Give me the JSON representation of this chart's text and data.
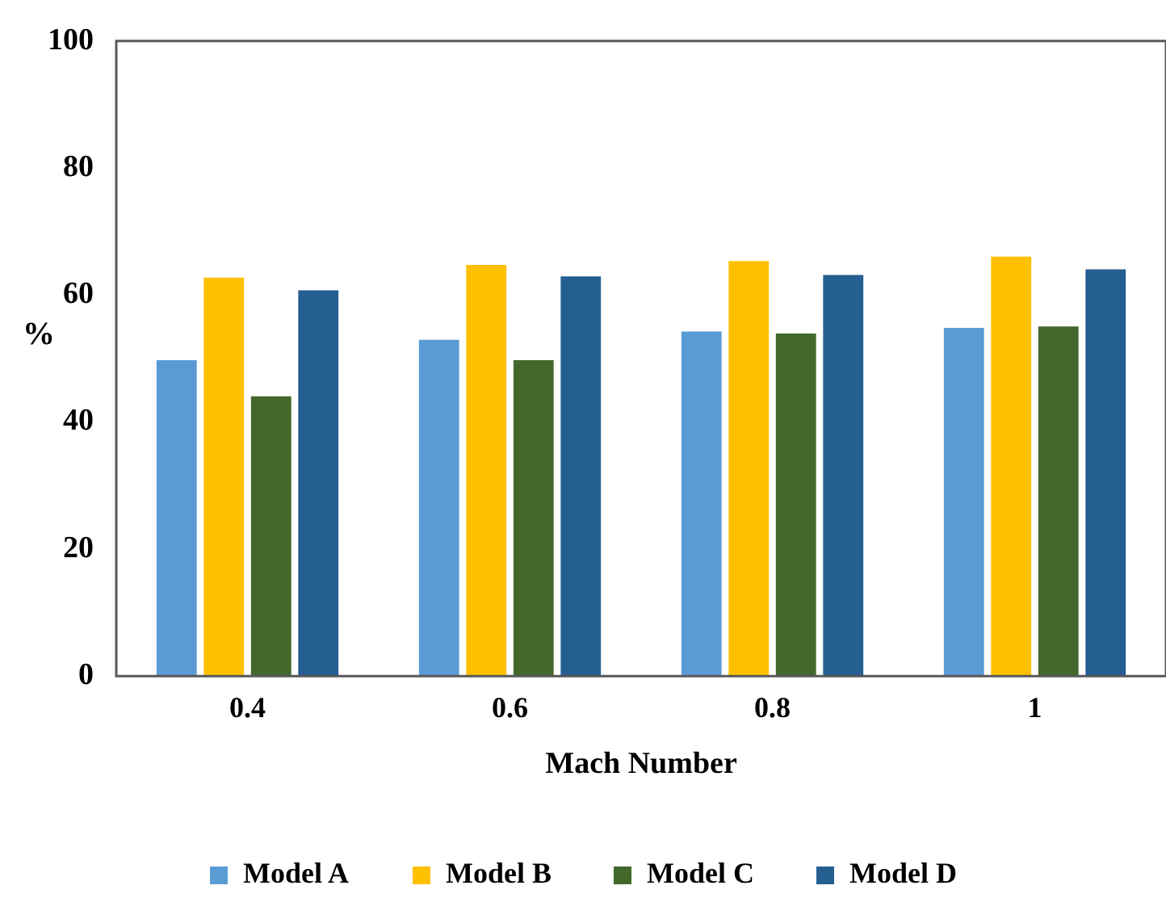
{
  "chart_data": {
    "type": "bar",
    "xlabel": "Mach Number",
    "ylabel": "%",
    "categories": [
      "0.4",
      "0.6",
      "0.8",
      "1"
    ],
    "series": [
      {
        "name": "Model A",
        "color": "#5b9bd5",
        "values": [
          50,
          53.2,
          54.5,
          55.1
        ]
      },
      {
        "name": "Model B",
        "color": "#ffc000",
        "values": [
          63,
          65,
          65.6,
          66.3
        ]
      },
      {
        "name": "Model C",
        "color": "#43682b",
        "values": [
          44.3,
          50,
          54.2,
          55.3
        ]
      },
      {
        "name": "Model D",
        "color": "#255e91",
        "values": [
          61,
          63.2,
          63.4,
          64.3
        ]
      }
    ],
    "ylim": [
      0,
      100
    ],
    "yticks": [
      0,
      20,
      40,
      60,
      80,
      100
    ],
    "grid": false,
    "legend": "bottom"
  }
}
